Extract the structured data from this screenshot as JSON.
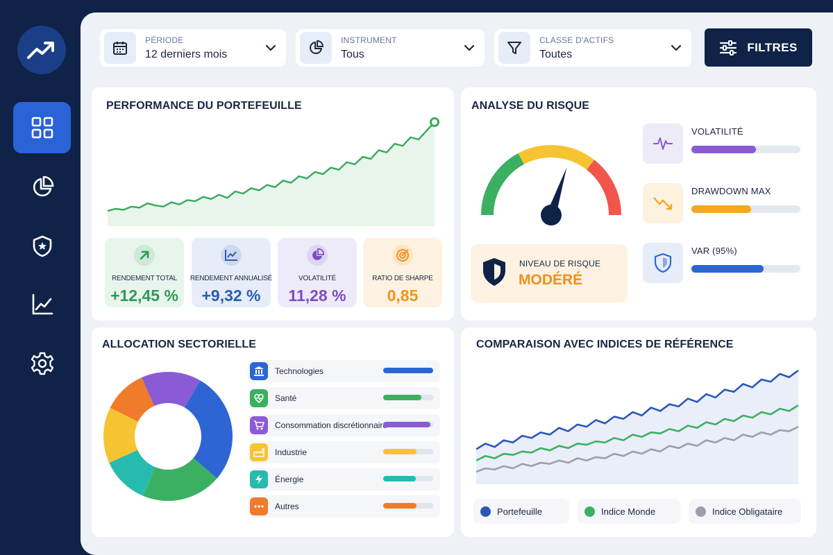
{
  "sidebar": {
    "items": [
      {
        "name": "dashboard",
        "icon": "grid-icon",
        "active": true
      },
      {
        "name": "allocation",
        "icon": "pie-chart-icon",
        "active": false
      },
      {
        "name": "risk",
        "icon": "shield-icon",
        "active": false
      },
      {
        "name": "analytics",
        "icon": "line-chart-icon",
        "active": false
      },
      {
        "name": "settings",
        "icon": "gear-icon",
        "active": false
      }
    ]
  },
  "filters": {
    "period": {
      "label": "PÉRIODE",
      "value": "12 derniers mois",
      "icon": "calendar-icon"
    },
    "instrument": {
      "label": "INSTRUMENT",
      "value": "Tous",
      "icon": "pie-chart-icon"
    },
    "asset_class": {
      "label": "CLASSE D'ACTIFS",
      "value": "Toutes",
      "icon": "funnel-icon"
    },
    "button_label": "FILTRES"
  },
  "performance": {
    "title": "PERFORMANCE DU PORTEFEUILLE",
    "metrics": [
      {
        "label": "RENDEMENT TOTAL",
        "value": "+12,45 %",
        "color": "#2f9a57",
        "bg": "#e7f5ec",
        "icon": "arrow-up-icon"
      },
      {
        "label": "RENDEMENT ANNUALISÉ",
        "value": "+9,32 %",
        "color": "#2a5db0",
        "bg": "#e6edf9",
        "icon": "trend-icon"
      },
      {
        "label": "VOLATILITÉ",
        "value": "11,28 %",
        "color": "#7b4cc4",
        "bg": "#eeebf8",
        "icon": "pie-icon"
      },
      {
        "label": "RATIO DE SHARPE",
        "value": "0,85",
        "color": "#f0951d",
        "bg": "#fdf2e1",
        "icon": "target-icon"
      }
    ]
  },
  "risk": {
    "title": "ANALYSE DU RISQUE",
    "gauge_level": 0.6,
    "level_label": "NIVEAU DE RISQUE",
    "level_value": "MODÉRÉ",
    "indicators": [
      {
        "label": "VOLATILITÉ",
        "fill": 0.59,
        "color": "#8b5bd6",
        "bg": "#eeebf8",
        "icon": "pulse-icon"
      },
      {
        "label": "DRAWDOWN MAX",
        "fill": 0.55,
        "color": "#f5a623",
        "bg": "#fdf1e0",
        "icon": "trend-down-icon"
      },
      {
        "label": "VAR (95%)",
        "fill": 0.66,
        "color": "#2d66d4",
        "bg": "#e6edf9",
        "icon": "shield-icon"
      }
    ]
  },
  "allocation": {
    "title": "ALLOCATION SECTORIELLE",
    "sectors": [
      {
        "label": "Technologies",
        "share": 0.28,
        "fill": 1.0,
        "color": "#2d66d4",
        "icon": "bank-icon"
      },
      {
        "label": "Santé",
        "share": 0.2,
        "fill": 0.77,
        "color": "#3cb062",
        "icon": "heart-icon"
      },
      {
        "label": "Consommation discrétionnaire",
        "share": 0.15,
        "fill": 0.95,
        "color": "#8b5bd6",
        "icon": "cart-icon"
      },
      {
        "label": "Industrie",
        "share": 0.14,
        "fill": 0.66,
        "color": "#f6c431",
        "icon": "factory-icon"
      },
      {
        "label": "Énergie",
        "share": 0.12,
        "fill": 0.65,
        "color": "#27bbb0",
        "icon": "bolt-icon"
      },
      {
        "label": "Autres",
        "share": 0.11,
        "fill": 0.67,
        "color": "#f07b2a",
        "icon": "dots-icon"
      }
    ]
  },
  "comparison": {
    "title": "COMPARAISON AVEC INDICES DE RÉFÉRENCE",
    "legend": [
      {
        "label": "Portefeuille",
        "color": "#2b56b8"
      },
      {
        "label": "Indice Monde",
        "color": "#3cb062"
      },
      {
        "label": "Indice Obligataire",
        "color": "#9aa0aa"
      }
    ]
  },
  "chart_data": [
    {
      "type": "area",
      "series": [
        {
          "values": [
            10,
            12,
            11,
            14,
            13,
            17,
            15,
            14,
            18,
            16,
            20,
            19,
            23,
            21,
            25,
            22,
            28,
            26,
            31,
            29,
            34,
            32,
            38,
            36,
            42,
            40,
            46,
            44,
            50,
            48,
            55,
            53,
            60,
            58,
            66,
            64,
            72,
            70,
            78,
            76,
            84,
            92
          ]
        }
      ]
    },
    {
      "type": "line",
      "series": [
        {
          "name": "Portefeuille",
          "values": [
            30,
            35,
            32,
            38,
            36,
            42,
            40,
            45,
            43,
            49,
            46,
            52,
            50,
            56,
            53,
            59,
            57,
            63,
            60,
            67,
            64,
            70,
            68,
            75,
            72,
            79,
            76,
            83,
            81,
            88,
            85,
            92,
            90,
            97,
            94,
            100
          ]
        },
        {
          "name": "Indice Monde",
          "values": [
            20,
            24,
            22,
            26,
            25,
            28,
            27,
            31,
            29,
            33,
            31,
            35,
            34,
            37,
            36,
            40,
            38,
            43,
            41,
            45,
            44,
            48,
            46,
            51,
            49,
            54,
            52,
            57,
            55,
            60,
            58,
            63,
            61,
            66,
            64,
            69
          ]
        },
        {
          "name": "Indice Obligataire",
          "values": [
            10,
            13,
            12,
            15,
            13,
            17,
            15,
            18,
            17,
            20,
            18,
            22,
            20,
            23,
            22,
            26,
            24,
            28,
            26,
            30,
            28,
            33,
            31,
            35,
            33,
            38,
            36,
            40,
            38,
            43,
            41,
            45,
            43,
            47,
            46,
            50
          ]
        }
      ]
    }
  ]
}
